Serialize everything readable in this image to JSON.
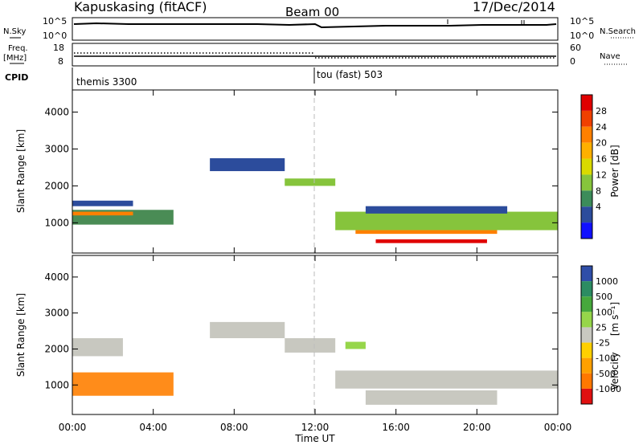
{
  "header": {
    "station": "Kapuskasing (fitACF)",
    "beam": "Beam 00",
    "date": "17/Dec/2014"
  },
  "top_panels": {
    "nsky_label": "N.Sky",
    "nsky_ticks": [
      "10^5",
      "10^0"
    ],
    "nsearch_label": "N.Search",
    "nsearch_ticks": [
      "10^5",
      "10^0"
    ],
    "freq_label": "Freq.",
    "freq_unit": "[MHz]",
    "freq_ticks": [
      "18",
      "8"
    ],
    "nave_label": "Nave",
    "nave_ticks": [
      "60",
      "0"
    ],
    "cpid_label": "CPID",
    "cpid_segments": [
      {
        "name": "themis 3300",
        "start_hour": 0
      },
      {
        "name": "tou (fast) 503",
        "start_hour": 12
      }
    ]
  },
  "chart_data": [
    {
      "type": "heatmap",
      "title": "",
      "ylabel": "Slant Range [km]",
      "xlabel": "",
      "x_ticks": [
        "00:00",
        "04:00",
        "08:00",
        "12:00",
        "16:00",
        "20:00",
        "00:00"
      ],
      "xlim_hours": [
        0,
        24
      ],
      "y_ticks": [
        1000,
        2000,
        3000,
        4000
      ],
      "ylim_km": [
        180,
        4600
      ],
      "colorbar": {
        "label": "Power [dB]",
        "tick_labels": [
          "28",
          "24",
          "20",
          "16",
          "12",
          "8",
          "4"
        ],
        "colors": [
          "#e00000",
          "#f04000",
          "#ff8000",
          "#ffb000",
          "#dada00",
          "#86c43c",
          "#3c8c5a",
          "#2c4c9c",
          "#1010ff"
        ]
      },
      "echo_regions": [
        {
          "t0": 0.0,
          "t1": 5.0,
          "r0": 950,
          "r1": 1350,
          "color": "#4a8c55"
        },
        {
          "t0": 0.0,
          "t1": 3.0,
          "r0": 1200,
          "r1": 1300,
          "color": "#ff8000"
        },
        {
          "t0": 0.0,
          "t1": 3.0,
          "r0": 1450,
          "r1": 1600,
          "color": "#2c4c9c"
        },
        {
          "t0": 6.8,
          "t1": 10.5,
          "r0": 2400,
          "r1": 2750,
          "color": "#2c4c9c"
        },
        {
          "t0": 10.5,
          "t1": 13.0,
          "r0": 2000,
          "r1": 2200,
          "color": "#86c43c"
        },
        {
          "t0": 13.0,
          "t1": 24.0,
          "r0": 800,
          "r1": 1300,
          "color": "#86c43c"
        },
        {
          "t0": 14.5,
          "t1": 21.5,
          "r0": 1250,
          "r1": 1450,
          "color": "#2c4c9c"
        },
        {
          "t0": 14.0,
          "t1": 21.0,
          "r0": 700,
          "r1": 800,
          "color": "#ff8000"
        },
        {
          "t0": 15.0,
          "t1": 20.5,
          "r0": 450,
          "r1": 550,
          "color": "#e00000"
        }
      ]
    },
    {
      "type": "heatmap",
      "title": "",
      "ylabel": "Slant Range [km]",
      "xlabel": "Time UT",
      "x_ticks": [
        "00:00",
        "04:00",
        "08:00",
        "12:00",
        "16:00",
        "20:00",
        "00:00"
      ],
      "xlim_hours": [
        0,
        24
      ],
      "y_ticks": [
        1000,
        2000,
        3000,
        4000
      ],
      "ylim_km": [
        180,
        4600
      ],
      "colorbar": {
        "label": "Velocity",
        "unit": "[m s⁻¹]",
        "tick_labels": [
          "1000",
          "500",
          "100",
          "25",
          "-25",
          "-100",
          "-500",
          "-1000"
        ],
        "colors": [
          "#2f4ea8",
          "#2c8c62",
          "#46a83c",
          "#96d64a",
          "#c8c8c0",
          "#ffd000",
          "#ffa000",
          "#ff7800",
          "#e01010"
        ]
      },
      "echo_regions": [
        {
          "t0": 0.0,
          "t1": 5.0,
          "r0": 700,
          "r1": 1350,
          "color": "#ff8c1a"
        },
        {
          "t0": 0.0,
          "t1": 2.5,
          "r0": 1800,
          "r1": 2300,
          "color": "#c8c8c0"
        },
        {
          "t0": 6.8,
          "t1": 10.5,
          "r0": 2300,
          "r1": 2750,
          "color": "#c8c8c0"
        },
        {
          "t0": 10.5,
          "t1": 13.0,
          "r0": 1900,
          "r1": 2300,
          "color": "#c8c8c0"
        },
        {
          "t0": 13.0,
          "t1": 24.0,
          "r0": 900,
          "r1": 1400,
          "color": "#c8c8c0"
        },
        {
          "t0": 14.5,
          "t1": 21.0,
          "r0": 450,
          "r1": 850,
          "color": "#c8c8c0"
        },
        {
          "t0": 13.5,
          "t1": 14.5,
          "r0": 2000,
          "r1": 2200,
          "color": "#96d64a"
        }
      ]
    }
  ]
}
